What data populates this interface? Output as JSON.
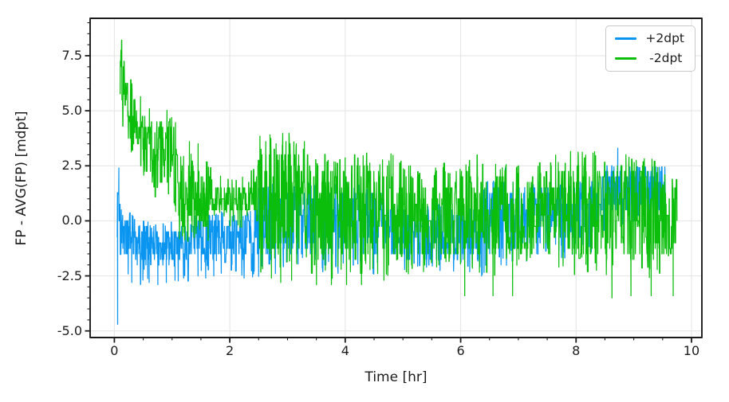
{
  "chart_data": {
    "type": "line",
    "title": "",
    "xlabel": "Time [hr]",
    "ylabel": "FP - AVG(FP) [mdpt]",
    "xlim": [
      -0.42,
      10.18
    ],
    "ylim": [
      -5.3,
      9.2
    ],
    "x_ticks": {
      "values": [
        0,
        2,
        4,
        6,
        8,
        10
      ],
      "labels": [
        "0",
        "2",
        "4",
        "6",
        "8",
        "10"
      ],
      "minor_step": 0.5
    },
    "y_ticks": {
      "values": [
        -5.0,
        -2.5,
        0.0,
        2.5,
        5.0,
        7.5
      ],
      "labels": [
        "-5.0",
        "-2.5",
        "0.0",
        "2.5",
        "5.0",
        "7.5"
      ],
      "minor_step": 0.5
    },
    "grid": true,
    "grid_color": "#e4e4e4",
    "axis_color": "#1c1c1c",
    "background": "#ffffff",
    "legend": {
      "position": "upper right"
    },
    "series": [
      {
        "name": "+2dpt",
        "color": "#0A96F0",
        "style": "dense noisy quantized line; band_nodes are [time_hr, band_min_mdpt, band_max_mdpt]; spikes are [time_hr, value_mdpt]",
        "observed_range": [
          -4.7,
          3.3
        ],
        "clip": [
          -2.9,
          2.45
        ],
        "fuzz": [
          0.9,
          0.3
        ],
        "band_nodes": [
          [
            0.05,
            -1.3,
            1.2
          ],
          [
            0.18,
            -1.5,
            0.3
          ],
          [
            0.4,
            -2.0,
            -0.2
          ],
          [
            0.65,
            -1.9,
            -0.35
          ],
          [
            1.3,
            -1.9,
            -0.35
          ],
          [
            1.4,
            -1.7,
            0.2
          ],
          [
            2.4,
            -1.7,
            0.2
          ],
          [
            2.55,
            -1.6,
            1.4
          ],
          [
            4.6,
            -1.7,
            1.4
          ],
          [
            4.75,
            -1.7,
            0.5
          ],
          [
            6.3,
            -1.7,
            0.5
          ],
          [
            6.45,
            -1.5,
            1.5
          ],
          [
            7.3,
            -1.0,
            1.5
          ],
          [
            8.3,
            -0.6,
            1.5
          ],
          [
            8.5,
            0.3,
            2.4
          ],
          [
            9.55,
            0.3,
            2.4
          ]
        ],
        "spikes": [
          [
            0.055,
            -4.7
          ],
          [
            0.075,
            2.4
          ],
          [
            0.3,
            -2.8
          ],
          [
            0.45,
            -2.9
          ],
          [
            0.6,
            -2.8
          ],
          [
            0.75,
            -2.9
          ],
          [
            0.9,
            -2.8
          ],
          [
            1.05,
            -2.7
          ],
          [
            1.2,
            -2.6
          ],
          [
            1.45,
            -2.5
          ],
          [
            1.58,
            -2.6
          ],
          [
            1.72,
            -2.5
          ],
          [
            2.5,
            1.5
          ],
          [
            6.77,
            2.4
          ],
          [
            8.72,
            3.3
          ]
        ]
      },
      {
        "name": "-2dpt",
        "color": "#0CBE0C",
        "style": "dense noisy quantized line; band_nodes are [time_hr, band_min_mdpt, band_max_mdpt]; spikes are [time_hr, value_mdpt]",
        "observed_range": [
          -3.6,
          8.6
        ],
        "clip": [
          -3.6,
          8.6
        ],
        "fuzz": [
          0.9,
          0.6
        ],
        "band_nodes": [
          [
            0.1,
            5.2,
            8.6
          ],
          [
            0.22,
            4.0,
            6.6
          ],
          [
            0.35,
            3.0,
            5.4
          ],
          [
            0.6,
            1.8,
            4.8
          ],
          [
            1.05,
            1.5,
            4.4
          ],
          [
            1.15,
            -0.5,
            2.6
          ],
          [
            1.62,
            -0.3,
            2.2
          ],
          [
            1.7,
            0.4,
            1.7
          ],
          [
            2.4,
            0.4,
            1.7
          ],
          [
            2.52,
            -1.5,
            3.4
          ],
          [
            3.3,
            -1.5,
            3.4
          ],
          [
            3.45,
            -1.8,
            2.5
          ],
          [
            4.7,
            -1.8,
            2.5
          ],
          [
            4.78,
            -1.6,
            2.6
          ],
          [
            5.3,
            -1.6,
            1.7
          ],
          [
            6.35,
            -1.6,
            2.6
          ],
          [
            7.1,
            -1.6,
            1.8
          ],
          [
            7.8,
            -1.6,
            2.6
          ],
          [
            8.45,
            -1.6,
            2.6
          ],
          [
            8.55,
            -2.0,
            2.5
          ],
          [
            9.35,
            -2.0,
            2.5
          ],
          [
            9.45,
            -1.5,
            1.6
          ],
          [
            9.75,
            -1.5,
            1.6
          ]
        ],
        "spikes": [
          [
            1.3,
            3.6
          ],
          [
            1.45,
            3.5
          ],
          [
            2.62,
            3.6
          ],
          [
            2.72,
            -2.6
          ],
          [
            2.8,
            3.5
          ],
          [
            2.88,
            -2.8
          ],
          [
            2.97,
            3.6
          ],
          [
            3.07,
            -2.7
          ],
          [
            3.15,
            3.5
          ],
          [
            3.5,
            -2.9
          ],
          [
            3.76,
            -2.9
          ],
          [
            4.02,
            -2.9
          ],
          [
            4.28,
            -2.9
          ],
          [
            4.56,
            -2.4
          ],
          [
            5.15,
            -2.0
          ],
          [
            5.62,
            -2.0
          ],
          [
            6.07,
            -3.4
          ],
          [
            6.56,
            -3.4
          ],
          [
            6.9,
            -3.4
          ],
          [
            8.62,
            -3.5
          ],
          [
            8.95,
            -3.4
          ],
          [
            9.3,
            -3.4
          ],
          [
            9.68,
            -3.4
          ]
        ]
      }
    ]
  }
}
